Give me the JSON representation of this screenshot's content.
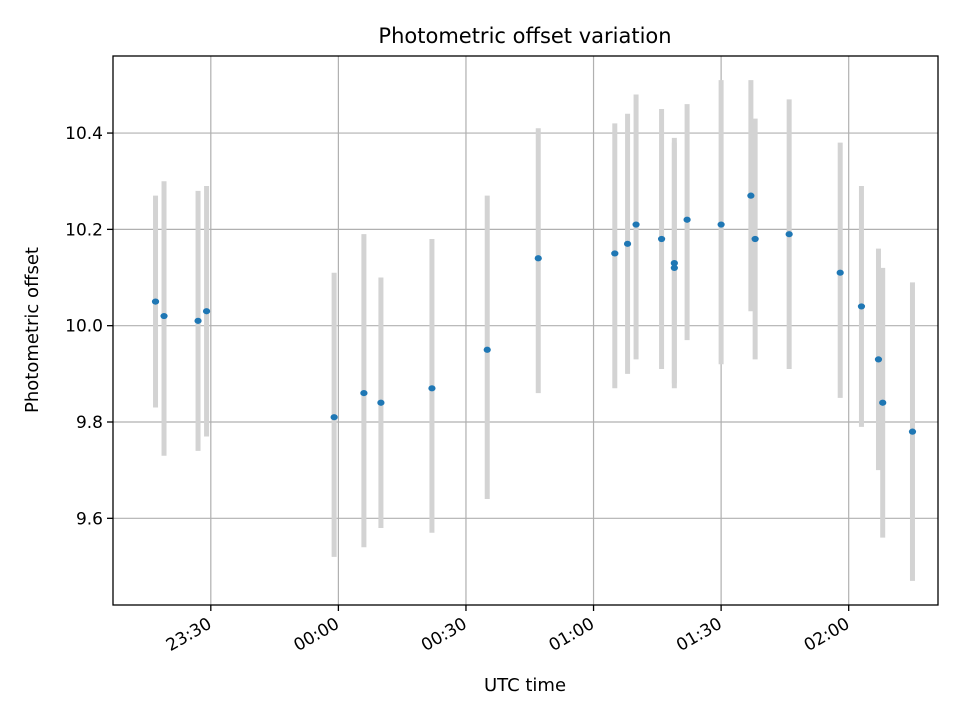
{
  "chart_data": {
    "type": "scatter",
    "title": "Photometric offset variation",
    "xlabel": "UTC time",
    "ylabel": "Photometric offset",
    "x_ticks": [
      "23:30",
      "00:00",
      "00:30",
      "01:00",
      "01:30",
      "02:00"
    ],
    "y_ticks": [
      "9.6",
      "9.8",
      "10.0",
      "10.2",
      "10.4"
    ],
    "xlim": [
      "23:07",
      "02:21"
    ],
    "ylim": [
      9.42,
      10.56
    ],
    "grid": true,
    "colors": {
      "points": "#1f77b4",
      "error_bars": "#d3d3d3"
    },
    "series": [
      {
        "points": [
          {
            "x": "23:17",
            "y": 10.05,
            "err_low": 9.83,
            "err_high": 10.27
          },
          {
            "x": "23:19",
            "y": 10.02,
            "err_low": 9.73,
            "err_high": 10.3
          },
          {
            "x": "23:27",
            "y": 10.01,
            "err_low": 9.74,
            "err_high": 10.28
          },
          {
            "x": "23:29",
            "y": 10.03,
            "err_low": 9.77,
            "err_high": 10.29
          },
          {
            "x": "23:59",
            "y": 9.81,
            "err_low": 9.52,
            "err_high": 10.11
          },
          {
            "x": "00:06",
            "y": 9.86,
            "err_low": 9.54,
            "err_high": 10.19
          },
          {
            "x": "00:10",
            "y": 9.84,
            "err_low": 9.58,
            "err_high": 10.1
          },
          {
            "x": "00:22",
            "y": 9.87,
            "err_low": 9.57,
            "err_high": 10.18
          },
          {
            "x": "00:35",
            "y": 9.95,
            "err_low": 9.64,
            "err_high": 10.27
          },
          {
            "x": "00:47",
            "y": 10.14,
            "err_low": 9.86,
            "err_high": 10.41
          },
          {
            "x": "01:05",
            "y": 10.15,
            "err_low": 9.87,
            "err_high": 10.42
          },
          {
            "x": "01:08",
            "y": 10.17,
            "err_low": 9.9,
            "err_high": 10.44
          },
          {
            "x": "01:10",
            "y": 10.21,
            "err_low": 9.93,
            "err_high": 10.48
          },
          {
            "x": "01:16",
            "y": 10.18,
            "err_low": 9.91,
            "err_high": 10.45
          },
          {
            "x": "01:19",
            "y": 10.12,
            "err_low": 9.88,
            "err_high": 10.38
          },
          {
            "x": "01:19",
            "y": 10.13,
            "err_low": 9.87,
            "err_high": 10.39
          },
          {
            "x": "01:22",
            "y": 10.22,
            "err_low": 9.97,
            "err_high": 10.46
          },
          {
            "x": "01:30",
            "y": 10.21,
            "err_low": 9.92,
            "err_high": 10.51
          },
          {
            "x": "01:37",
            "y": 10.27,
            "err_low": 10.03,
            "err_high": 10.51
          },
          {
            "x": "01:38",
            "y": 10.18,
            "err_low": 9.93,
            "err_high": 10.43
          },
          {
            "x": "01:46",
            "y": 10.19,
            "err_low": 9.91,
            "err_high": 10.47
          },
          {
            "x": "01:58",
            "y": 10.11,
            "err_low": 9.85,
            "err_high": 10.38
          },
          {
            "x": "02:03",
            "y": 10.04,
            "err_low": 9.79,
            "err_high": 10.29
          },
          {
            "x": "02:07",
            "y": 9.93,
            "err_low": 9.7,
            "err_high": 10.16
          },
          {
            "x": "02:08",
            "y": 9.84,
            "err_low": 9.56,
            "err_high": 10.12
          },
          {
            "x": "02:15",
            "y": 9.78,
            "err_low": 9.47,
            "err_high": 10.09
          }
        ]
      }
    ]
  }
}
